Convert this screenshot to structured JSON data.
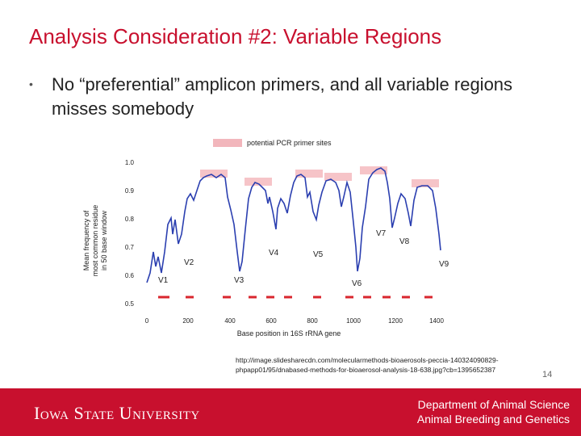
{
  "slide": {
    "title": "Analysis Consideration #2: Variable Regions",
    "bullet": "No “preferential” amplicon primers, and all variable regions misses somebody",
    "source_line1": "http://image.slidesharecdn.com/molecularmethods-bioaerosols-peccia-140324090829-",
    "source_line2": "phpapp01/95/dnabased-methods-for-bioaerosol-analysis-18-638.jpg?cb=1395652387",
    "page_number": "14"
  },
  "figure": {
    "legend_label": "potential PCR primer sites",
    "ylabel_line1": "Mean frequency of",
    "ylabel_line2": "most common residue",
    "ylabel_line3": "in 50 base window",
    "xlabel": "Base position in 16S rRNA gene",
    "x_ticks": [
      "0",
      "200",
      "400",
      "600",
      "800",
      "1000",
      "1200",
      "1400"
    ],
    "y_ticks": [
      "1.0",
      "0.9",
      "0.8",
      "0.7",
      "0.6",
      "0.5"
    ],
    "region_labels": [
      "V1",
      "V2",
      "V3",
      "V4",
      "V5",
      "V6",
      "V7",
      "V8",
      "V9"
    ],
    "colors": {
      "line": "#2b3fb0",
      "primer_box": "#f6c4c8",
      "bar": "#d9262e",
      "legend_box": "#f2b6bc"
    }
  },
  "footer": {
    "university": "Iowa State University",
    "dept_line1": "Department of Animal Science",
    "dept_line2": "Animal Breeding and Genetics"
  }
}
